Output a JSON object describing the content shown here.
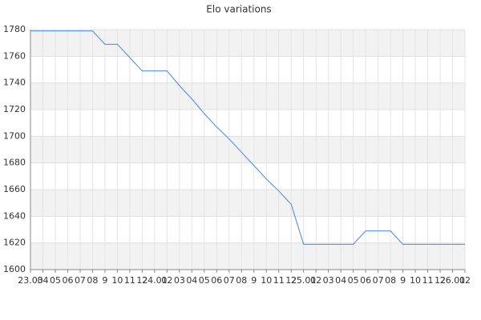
{
  "chart_data": {
    "type": "line",
    "title": "Elo variations",
    "categories": [
      "23.03",
      "04",
      "05",
      "06",
      "07",
      "08",
      "9",
      "10",
      "11",
      "12",
      "24.01",
      "02",
      "03",
      "04",
      "05",
      "06",
      "07",
      "08",
      "9",
      "10",
      "11",
      "12",
      "25.01",
      "02",
      "03",
      "04",
      "05",
      "06",
      "07",
      "08",
      "9",
      "10",
      "11",
      "12",
      "26.01",
      "02"
    ],
    "series": [
      {
        "name": "Elo",
        "color": "#4a86e8",
        "values": [
          1779,
          1779,
          1779,
          1779,
          1779,
          1779,
          1769,
          1769,
          1759,
          1749,
          1749,
          1749,
          1738,
          1728,
          1717,
          1707,
          1698,
          1688,
          1678,
          1668,
          1659,
          1649,
          1619,
          1619,
          1619,
          1619,
          1619,
          1629,
          1629,
          1629,
          1619,
          1619,
          1619,
          1619,
          1619,
          1619
        ]
      }
    ],
    "ylim": [
      1600,
      1780
    ],
    "yticks": [
      1600,
      1620,
      1640,
      1660,
      1680,
      1700,
      1720,
      1740,
      1760,
      1780
    ],
    "grid": true,
    "bands": true
  }
}
